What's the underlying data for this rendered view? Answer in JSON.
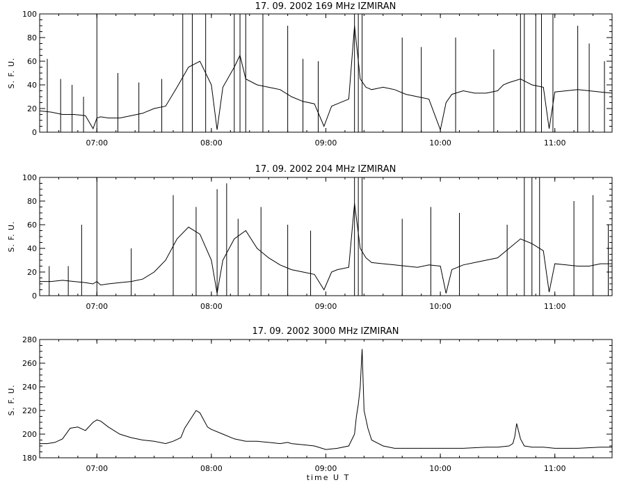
{
  "chart_data": [
    {
      "type": "line",
      "title": "17.  09.  2002    169 MHz    IZMIRAN",
      "ylabel": "S. F. U.",
      "xlabel": "",
      "xlim": [
        "06:30",
        "11:30"
      ],
      "ylim": [
        0,
        100
      ],
      "xticks": [
        "07:00",
        "08:00",
        "09:00",
        "10:00",
        "11:00"
      ],
      "yticks": [
        0,
        20,
        40,
        60,
        80,
        100
      ],
      "series": [
        {
          "x": [
            "06:30",
            "06:36",
            "06:42",
            "06:48",
            "06:54",
            "06:58",
            "07:00",
            "07:02",
            "07:06",
            "07:12",
            "07:18",
            "07:24",
            "07:30",
            "07:36",
            "07:42",
            "07:48",
            "07:54",
            "08:00",
            "08:03",
            "08:06",
            "08:12",
            "08:15",
            "08:18",
            "08:24",
            "08:30",
            "08:36",
            "08:42",
            "08:48",
            "08:54",
            "08:59",
            "09:03",
            "09:06",
            "09:12",
            "09:15",
            "09:18",
            "09:21",
            "09:24",
            "09:30",
            "09:36",
            "09:42",
            "09:48",
            "09:54",
            "10:00",
            "10:03",
            "10:06",
            "10:12",
            "10:18",
            "10:24",
            "10:30",
            "10:33",
            "10:36",
            "10:42",
            "10:48",
            "10:54",
            "10:57",
            "11:00",
            "11:06",
            "11:12",
            "11:18",
            "11:24",
            "11:30"
          ],
          "values": [
            18,
            17,
            15,
            15,
            14,
            3,
            12,
            13,
            12,
            12,
            14,
            16,
            20,
            22,
            38,
            55,
            60,
            40,
            2,
            38,
            55,
            65,
            45,
            40,
            38,
            36,
            30,
            26,
            24,
            5,
            22,
            24,
            28,
            90,
            45,
            38,
            36,
            38,
            36,
            32,
            30,
            28,
            2,
            25,
            32,
            35,
            33,
            33,
            35,
            40,
            42,
            45,
            40,
            38,
            3,
            34,
            35,
            36,
            35,
            34,
            33
          ]
        }
      ],
      "spikes": [
        {
          "t": "06:34",
          "v": 62
        },
        {
          "t": "06:41",
          "v": 45
        },
        {
          "t": "06:47",
          "v": 40
        },
        {
          "t": "06:53",
          "v": 30
        },
        {
          "t": "07:00",
          "v": 100
        },
        {
          "t": "07:11",
          "v": 50
        },
        {
          "t": "07:22",
          "v": 42
        },
        {
          "t": "07:34",
          "v": 45
        },
        {
          "t": "07:45",
          "v": 100
        },
        {
          "t": "07:50",
          "v": 100
        },
        {
          "t": "07:57",
          "v": 100
        },
        {
          "t": "08:12",
          "v": 100
        },
        {
          "t": "08:15",
          "v": 100
        },
        {
          "t": "08:18",
          "v": 100
        },
        {
          "t": "08:27",
          "v": 100
        },
        {
          "t": "08:40",
          "v": 90
        },
        {
          "t": "08:48",
          "v": 62
        },
        {
          "t": "08:56",
          "v": 60
        },
        {
          "t": "09:15",
          "v": 100
        },
        {
          "t": "09:17",
          "v": 100
        },
        {
          "t": "09:19",
          "v": 100
        },
        {
          "t": "09:40",
          "v": 80
        },
        {
          "t": "09:50",
          "v": 72
        },
        {
          "t": "10:08",
          "v": 80
        },
        {
          "t": "10:28",
          "v": 70
        },
        {
          "t": "10:42",
          "v": 100
        },
        {
          "t": "10:44",
          "v": 100
        },
        {
          "t": "10:50",
          "v": 100
        },
        {
          "t": "10:53",
          "v": 100
        },
        {
          "t": "10:59",
          "v": 100
        },
        {
          "t": "11:12",
          "v": 90
        },
        {
          "t": "11:18",
          "v": 75
        },
        {
          "t": "11:26",
          "v": 60
        }
      ]
    },
    {
      "type": "line",
      "title": "17.  09.  2002    204 MHz    IZMIRAN",
      "ylabel": "S. F. U.",
      "xlabel": "",
      "xlim": [
        "06:30",
        "11:30"
      ],
      "ylim": [
        0,
        100
      ],
      "xticks": [
        "07:00",
        "08:00",
        "09:00",
        "10:00",
        "11:00"
      ],
      "yticks": [
        0,
        20,
        40,
        60,
        80,
        100
      ],
      "series": [
        {
          "x": [
            "06:30",
            "06:36",
            "06:42",
            "06:48",
            "06:54",
            "06:58",
            "07:00",
            "07:02",
            "07:06",
            "07:12",
            "07:18",
            "07:24",
            "07:30",
            "07:36",
            "07:42",
            "07:48",
            "07:54",
            "08:00",
            "08:03",
            "08:06",
            "08:12",
            "08:18",
            "08:24",
            "08:30",
            "08:36",
            "08:42",
            "08:48",
            "08:54",
            "08:59",
            "09:03",
            "09:06",
            "09:12",
            "09:15",
            "09:18",
            "09:21",
            "09:24",
            "09:30",
            "09:36",
            "09:42",
            "09:48",
            "09:54",
            "10:00",
            "10:03",
            "10:06",
            "10:12",
            "10:18",
            "10:24",
            "10:30",
            "10:36",
            "10:42",
            "10:48",
            "10:54",
            "10:57",
            "11:00",
            "11:06",
            "11:12",
            "11:18",
            "11:24",
            "11:30"
          ],
          "values": [
            12,
            12,
            13,
            12,
            11,
            10,
            12,
            9,
            10,
            11,
            12,
            14,
            20,
            30,
            48,
            58,
            52,
            30,
            2,
            30,
            48,
            55,
            40,
            32,
            26,
            22,
            20,
            18,
            5,
            20,
            22,
            24,
            78,
            40,
            32,
            28,
            27,
            26,
            25,
            24,
            26,
            25,
            2,
            22,
            26,
            28,
            30,
            32,
            40,
            48,
            44,
            38,
            3,
            27,
            26,
            25,
            25,
            27,
            27
          ]
        }
      ],
      "spikes": [
        {
          "t": "06:35",
          "v": 25
        },
        {
          "t": "06:45",
          "v": 25
        },
        {
          "t": "06:52",
          "v": 60
        },
        {
          "t": "07:00",
          "v": 100
        },
        {
          "t": "07:18",
          "v": 40
        },
        {
          "t": "07:40",
          "v": 85
        },
        {
          "t": "07:52",
          "v": 75
        },
        {
          "t": "08:03",
          "v": 90
        },
        {
          "t": "08:08",
          "v": 95
        },
        {
          "t": "08:14",
          "v": 65
        },
        {
          "t": "08:26",
          "v": 75
        },
        {
          "t": "08:40",
          "v": 60
        },
        {
          "t": "08:52",
          "v": 55
        },
        {
          "t": "09:15",
          "v": 100
        },
        {
          "t": "09:17",
          "v": 100
        },
        {
          "t": "09:19",
          "v": 100
        },
        {
          "t": "09:40",
          "v": 65
        },
        {
          "t": "09:55",
          "v": 75
        },
        {
          "t": "10:10",
          "v": 70
        },
        {
          "t": "10:35",
          "v": 60
        },
        {
          "t": "10:44",
          "v": 100
        },
        {
          "t": "10:48",
          "v": 100
        },
        {
          "t": "10:52",
          "v": 100
        },
        {
          "t": "11:10",
          "v": 80
        },
        {
          "t": "11:20",
          "v": 85
        },
        {
          "t": "11:28",
          "v": 60
        }
      ]
    },
    {
      "type": "line",
      "title": "17.  09.  2002    3000 MHz    IZMIRAN",
      "ylabel": "S. F. U.",
      "xlabel": "time  U T",
      "xlim": [
        "06:30",
        "11:30"
      ],
      "ylim": [
        180,
        280
      ],
      "xticks": [
        "07:00",
        "08:00",
        "09:00",
        "10:00",
        "11:00"
      ],
      "yticks": [
        180,
        200,
        220,
        240,
        260,
        280
      ],
      "series": [
        {
          "x": [
            "06:30",
            "06:34",
            "06:38",
            "06:42",
            "06:46",
            "06:50",
            "06:54",
            "06:58",
            "07:00",
            "07:02",
            "07:06",
            "07:12",
            "07:18",
            "07:24",
            "07:30",
            "07:36",
            "07:40",
            "07:44",
            "07:46",
            "07:48",
            "07:50",
            "07:52",
            "07:54",
            "07:56",
            "07:58",
            "08:00",
            "08:06",
            "08:12",
            "08:18",
            "08:24",
            "08:30",
            "08:36",
            "08:40",
            "08:42",
            "08:48",
            "08:54",
            "09:00",
            "09:06",
            "09:12",
            "09:15",
            "09:16",
            "09:17",
            "09:18",
            "09:19",
            "09:20",
            "09:22",
            "09:24",
            "09:30",
            "09:36",
            "09:48",
            "10:00",
            "10:12",
            "10:24",
            "10:30",
            "10:36",
            "10:38",
            "10:39",
            "10:40",
            "10:42",
            "10:44",
            "10:48",
            "10:54",
            "11:00",
            "11:12",
            "11:24",
            "11:30"
          ],
          "values": [
            192,
            192,
            193,
            196,
            205,
            206,
            203,
            210,
            212,
            211,
            206,
            200,
            197,
            195,
            194,
            192,
            194,
            197,
            205,
            210,
            215,
            220,
            218,
            212,
            206,
            204,
            200,
            196,
            194,
            194,
            193,
            192,
            193,
            192,
            191,
            190,
            187,
            188,
            190,
            200,
            215,
            225,
            240,
            272,
            220,
            205,
            195,
            190,
            188,
            188,
            188,
            188,
            189,
            189,
            190,
            192,
            198,
            209,
            196,
            190,
            189,
            189,
            188,
            188,
            189,
            189
          ]
        }
      ],
      "spikes": []
    }
  ]
}
